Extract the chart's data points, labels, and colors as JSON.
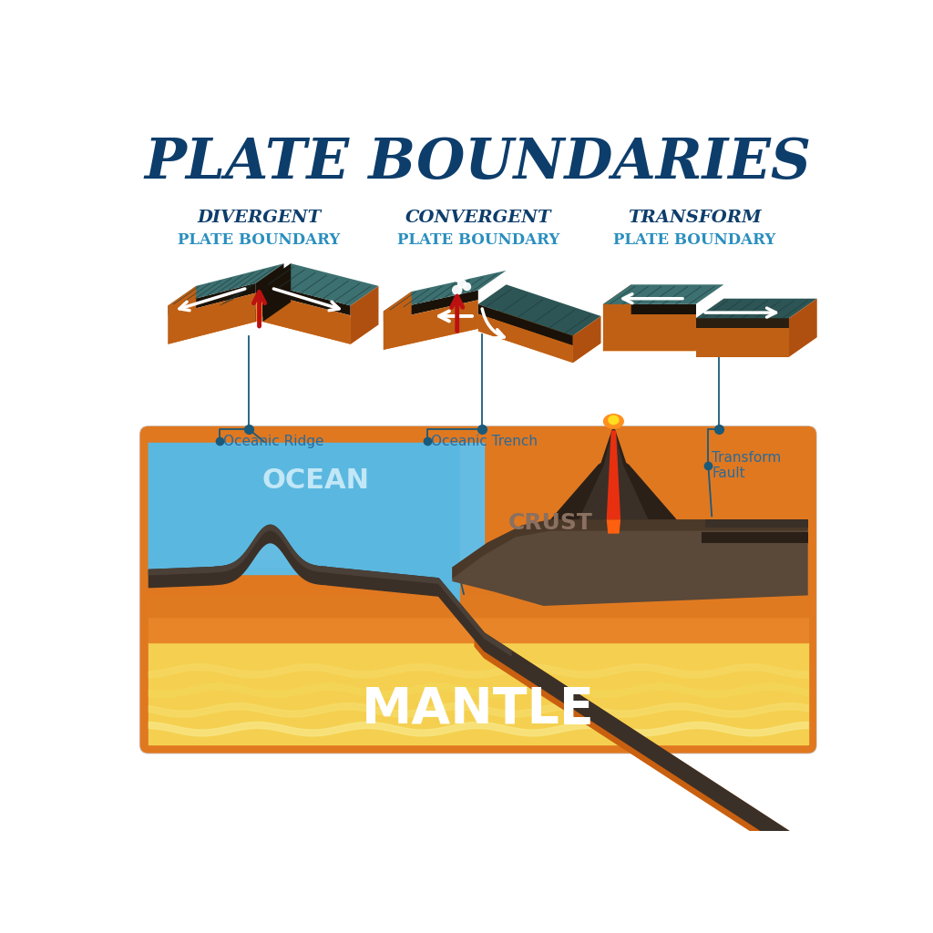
{
  "title": "PLATE BOUNDARIES",
  "title_color": "#0d3d6b",
  "title_fontsize": 44,
  "bg_color": "#ffffff",
  "panel_titles": [
    "DIVERGENT",
    "CONVERGENT",
    "TRANSFORM"
  ],
  "panel_subtitles": [
    "PLATE BOUNDARY",
    "PLATE BOUNDARY",
    "PLATE BOUNDARY"
  ],
  "panel_title_color": "#0d3d6b",
  "panel_subtitle_color": "#2a8fbf",
  "labels": [
    "Oceanic Ridge",
    "Oceanic Trench",
    "Transform\nFault"
  ],
  "label_color": "#2a6a9a",
  "ocean_label": "OCEAN",
  "crust_label": "CRUST",
  "mantle_label": "MANTLE",
  "ocean_label_color": "#c8eaf8",
  "crust_label_color": "#5a4a3a",
  "mantle_label_color": "#ffffff",
  "plate_teal": "#3d7070",
  "plate_teal_dark": "#2d5555",
  "plate_dark": "#1a1208",
  "plate_dark2": "#2a1e10",
  "plate_orange": "#e07820",
  "plate_orange2": "#f09030",
  "plate_side_r": "#b05010",
  "plate_side_l": "#c06015",
  "arrow_white": "#ffffff",
  "arrow_red": "#bb1111",
  "connector_color": "#1a5a7a",
  "ocean_blue1": "#5ab8e0",
  "ocean_blue2": "#88ccee",
  "ocean_blue3": "#40a0cc",
  "mantle_orange1": "#e07820",
  "mantle_orange2": "#e89030",
  "mantle_yellow1": "#f5d050",
  "mantle_yellow2": "#f8e080",
  "crust_dark": "#3a3028",
  "crust_med": "#4a4038",
  "crust_gray": "#5a5048",
  "cont_dark": "#4a3828",
  "cont_med": "#5a4838",
  "volcano_dark": "#2a2018",
  "volcano_mid": "#3a3028",
  "lava_red": "#e83010",
  "lava_orange": "#ff6010",
  "lava_glow": "#ff9020"
}
